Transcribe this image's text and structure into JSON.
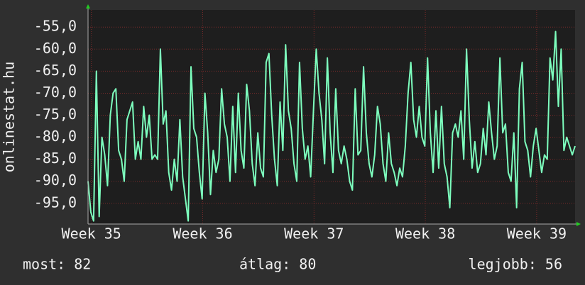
{
  "chart_data": {
    "type": "line",
    "y_label": "onlinestat.hu",
    "color": "#7dffbe",
    "grid": true,
    "ylim": [
      -99.7,
      -51.1
    ],
    "yticks": [
      {
        "value": -55,
        "label": "-55,0"
      },
      {
        "value": -60,
        "label": "-60,0"
      },
      {
        "value": -65,
        "label": "-65,0"
      },
      {
        "value": -70,
        "label": "-70,0"
      },
      {
        "value": -75,
        "label": "-75,0"
      },
      {
        "value": -80,
        "label": "-80,0"
      },
      {
        "value": -85,
        "label": "-85,0"
      },
      {
        "value": -90,
        "label": "-90,0"
      },
      {
        "value": -95,
        "label": "-95,0"
      }
    ],
    "xlim": [
      34.97,
      39.345
    ],
    "xticks": [
      {
        "value": 35,
        "label": "Week 35"
      },
      {
        "value": 36,
        "label": "Week 36"
      },
      {
        "value": 37,
        "label": "Week 37"
      },
      {
        "value": 38,
        "label": "Week 38"
      },
      {
        "value": 39,
        "label": "Week 39"
      }
    ],
    "x": [
      34.97,
      34.995,
      35.02,
      35.045,
      35.07,
      35.095,
      35.12,
      35.145,
      35.17,
      35.195,
      35.22,
      35.245,
      35.27,
      35.295,
      35.32,
      35.345,
      35.37,
      35.395,
      35.42,
      35.445,
      35.47,
      35.495,
      35.52,
      35.545,
      35.57,
      35.595,
      35.62,
      35.645,
      35.67,
      35.695,
      35.72,
      35.745,
      35.77,
      35.795,
      35.82,
      35.845,
      35.87,
      35.895,
      35.92,
      35.945,
      35.97,
      35.995,
      36.02,
      36.045,
      36.07,
      36.095,
      36.12,
      36.145,
      36.17,
      36.195,
      36.22,
      36.245,
      36.27,
      36.295,
      36.32,
      36.345,
      36.37,
      36.395,
      36.42,
      36.445,
      36.47,
      36.495,
      36.52,
      36.545,
      36.57,
      36.595,
      36.62,
      36.645,
      36.67,
      36.695,
      36.72,
      36.745,
      36.77,
      36.795,
      36.82,
      36.845,
      36.87,
      36.895,
      36.92,
      36.945,
      36.97,
      36.995,
      37.02,
      37.045,
      37.07,
      37.095,
      37.12,
      37.145,
      37.17,
      37.195,
      37.22,
      37.245,
      37.27,
      37.295,
      37.32,
      37.345,
      37.37,
      37.395,
      37.42,
      37.445,
      37.47,
      37.495,
      37.52,
      37.545,
      37.57,
      37.595,
      37.62,
      37.645,
      37.67,
      37.695,
      37.72,
      37.745,
      37.77,
      37.795,
      37.82,
      37.845,
      37.87,
      37.895,
      37.92,
      37.945,
      37.97,
      37.995,
      38.02,
      38.045,
      38.07,
      38.095,
      38.12,
      38.145,
      38.17,
      38.195,
      38.22,
      38.245,
      38.27,
      38.295,
      38.32,
      38.345,
      38.37,
      38.395,
      38.42,
      38.445,
      38.47,
      38.495,
      38.52,
      38.545,
      38.57,
      38.595,
      38.62,
      38.645,
      38.67,
      38.695,
      38.72,
      38.745,
      38.77,
      38.795,
      38.82,
      38.845,
      38.87,
      38.895,
      38.92,
      38.945,
      38.97,
      38.995,
      39.02,
      39.045,
      39.07,
      39.095,
      39.12,
      39.145,
      39.17,
      39.195,
      39.22,
      39.245,
      39.27,
      39.295,
      39.32,
      39.345
    ],
    "values": [
      -90,
      -97,
      -99,
      -65,
      -98,
      -80,
      -84,
      -91,
      -75,
      -70,
      -69,
      -83,
      -85,
      -90,
      -76,
      -74,
      -72,
      -85,
      -81,
      -85,
      -73,
      -80,
      -75,
      -85,
      -84,
      -85,
      -60,
      -77,
      -74,
      -88,
      -92,
      -85,
      -90,
      -76,
      -89,
      -94,
      -99,
      -64,
      -78,
      -80,
      -88,
      -94,
      -70,
      -79,
      -93,
      -83,
      -88,
      -85,
      -69,
      -77,
      -80,
      -90,
      -73,
      -88,
      -70,
      -83,
      -87,
      -68,
      -74,
      -86,
      -91,
      -79,
      -87,
      -89,
      -63,
      -61,
      -75,
      -85,
      -91,
      -72,
      -83,
      -59,
      -74,
      -78,
      -86,
      -90,
      -63,
      -78,
      -85,
      -82,
      -89,
      -74,
      -60,
      -70,
      -76,
      -86,
      -62,
      -79,
      -88,
      -69,
      -83,
      -86,
      -82,
      -85,
      -90,
      -92,
      -69,
      -84,
      -83,
      -64,
      -79,
      -86,
      -89,
      -84,
      -73,
      -77,
      -86,
      -90,
      -79,
      -86,
      -88,
      -91,
      -87,
      -89,
      -82,
      -70,
      -63,
      -76,
      -80,
      -73,
      -80,
      -82,
      -62,
      -79,
      -88,
      -74,
      -87,
      -73,
      -86,
      -89,
      -96,
      -79,
      -77,
      -80,
      -74,
      -85,
      -60,
      -76,
      -87,
      -81,
      -88,
      -86,
      -78,
      -84,
      -72,
      -79,
      -85,
      -82,
      -62,
      -79,
      -77,
      -88,
      -90,
      -79,
      -96,
      -69,
      -63,
      -81,
      -83,
      -89,
      -82,
      -78,
      -83,
      -88,
      -84,
      -85,
      -62,
      -67,
      -56,
      -73,
      -60,
      -83,
      -80,
      -82,
      -84,
      -82
    ],
    "footer": {
      "current": "most: 82",
      "average": "átlag: 80",
      "best": "legjobb: 56"
    }
  }
}
